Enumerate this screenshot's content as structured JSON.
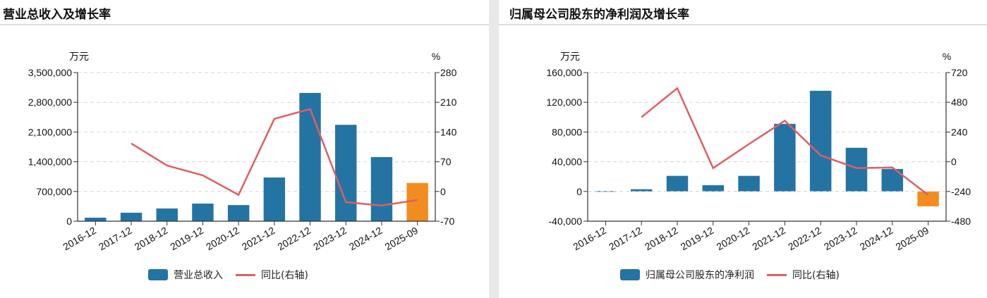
{
  "colors": {
    "bar": "#2474a3",
    "bar_highlight": "#f28c1e",
    "line": "#de5f62",
    "grid": "#d6d6d6",
    "axis": "#333333"
  },
  "charts": [
    {
      "title": "营业总收入及增长率",
      "left_unit": "万元",
      "right_unit": "%",
      "legend_bar": "营业总收入",
      "legend_line": "同比(右轴)"
    },
    {
      "title": "归属母公司股东的净利润及增长率",
      "left_unit": "万元",
      "right_unit": "%",
      "legend_bar": "归属母公司股东的净利润",
      "legend_line": "同比(右轴)"
    }
  ],
  "chart_data": [
    {
      "type": "bar",
      "title": "营业总收入及增长率",
      "categories": [
        "2016-12",
        "2017-12",
        "2018-12",
        "2019-12",
        "2020-12",
        "2021-12",
        "2022-12",
        "2023-12",
        "2024-12",
        "2025-09"
      ],
      "series": [
        {
          "name": "营业总收入",
          "type": "bar",
          "axis": "left",
          "unit": "万元",
          "values": [
            83000,
            200000,
            300000,
            415000,
            380000,
            1030000,
            3020000,
            2270000,
            1510000,
            900000
          ]
        },
        {
          "name": "同比(右轴)",
          "type": "line",
          "axis": "right",
          "unit": "%",
          "values": [
            null,
            113,
            61,
            38,
            -8,
            171,
            194,
            -25,
            -33,
            -20
          ]
        }
      ],
      "left_axis": {
        "label": "万元",
        "ticks": [
          0,
          700000,
          1400000,
          2100000,
          2800000,
          3500000
        ],
        "tick_labels": [
          "0",
          "700,000",
          "1,400,000",
          "2,100,000",
          "2,800,000",
          "3,500,000"
        ],
        "range": [
          0,
          3500000
        ]
      },
      "right_axis": {
        "label": "%",
        "ticks": [
          -70,
          0,
          70,
          140,
          210,
          280
        ],
        "tick_labels": [
          "-70",
          "0",
          "70",
          "140",
          "210",
          "280"
        ],
        "range": [
          -70,
          280
        ]
      },
      "highlight_index": 9,
      "grid": true,
      "legend_position": "bottom"
    },
    {
      "type": "bar",
      "title": "归属母公司股东的净利润及增长率",
      "categories": [
        "2016-12",
        "2017-12",
        "2018-12",
        "2019-12",
        "2020-12",
        "2021-12",
        "2022-12",
        "2023-12",
        "2024-12",
        "2025-09"
      ],
      "series": [
        {
          "name": "归属母公司股东的净利润",
          "type": "bar",
          "axis": "left",
          "unit": "万元",
          "values": [
            500,
            3000,
            21000,
            8500,
            21000,
            91000,
            135500,
            58800,
            30300,
            -20000
          ]
        },
        {
          "name": "同比(右轴)",
          "type": "line",
          "axis": "right",
          "unit": "%",
          "values": [
            null,
            360,
            594,
            -51,
            143,
            331,
            51,
            -51,
            -46,
            -268
          ]
        }
      ],
      "left_axis": {
        "label": "万元",
        "ticks": [
          -40000,
          0,
          40000,
          80000,
          120000,
          160000
        ],
        "tick_labels": [
          "-40,000",
          "0",
          "40,000",
          "80,000",
          "120,000",
          "160,000"
        ],
        "range": [
          -40000,
          160000
        ]
      },
      "right_axis": {
        "label": "%",
        "ticks": [
          -480,
          -240,
          0,
          240,
          480,
          720
        ],
        "tick_labels": [
          "-480",
          "-240",
          "0",
          "240",
          "480",
          "720"
        ],
        "range": [
          -480,
          720
        ]
      },
      "highlight_index": 9,
      "grid": true,
      "legend_position": "bottom"
    }
  ]
}
